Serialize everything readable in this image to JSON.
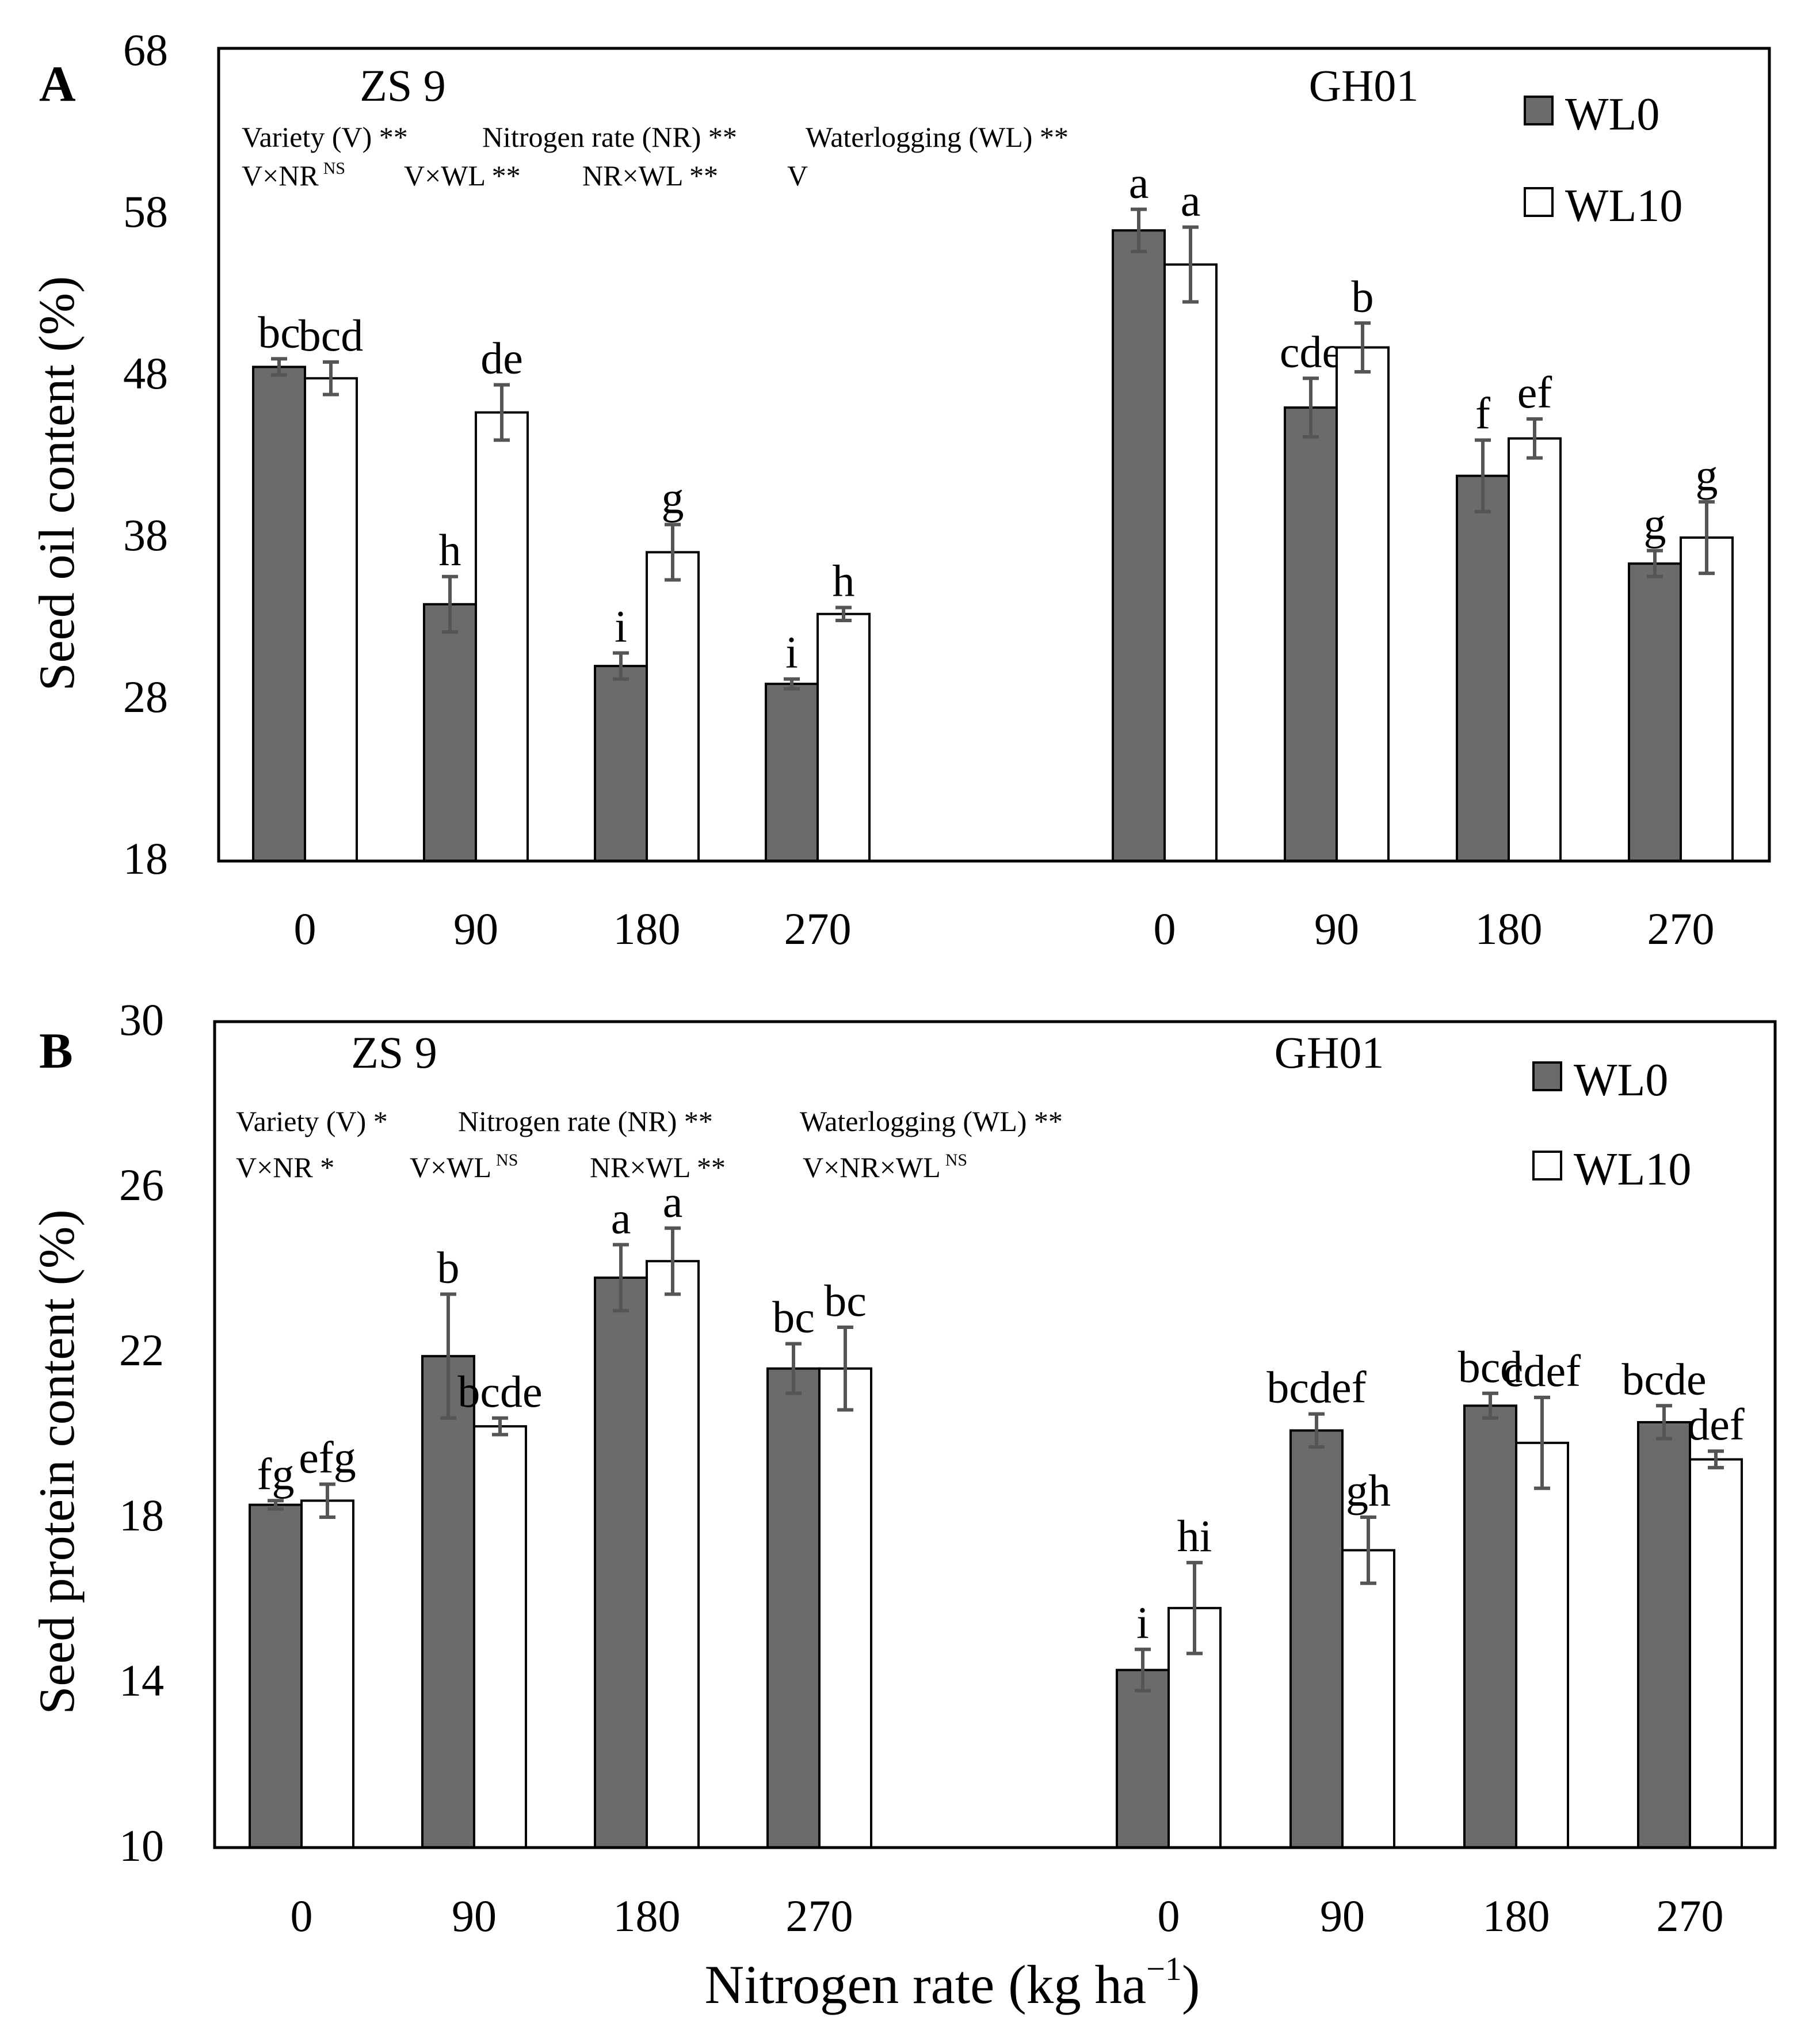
{
  "figure": {
    "xlabel": "Nitrogen rate (kg ha",
    "xlabel_sup": "−1",
    "xlabel_end": ")"
  },
  "chart_data": [
    {
      "type": "bar",
      "panel": "A",
      "ylabel": "Seed oil content (%)",
      "ylim": [
        18,
        68
      ],
      "yticks": [
        18,
        28,
        38,
        48,
        58,
        68
      ],
      "groups": [
        "ZS 9",
        "GH01"
      ],
      "categories": [
        "0",
        "90",
        "180",
        "270",
        "0",
        "90",
        "180",
        "270"
      ],
      "series": [
        {
          "name": "WL0",
          "color": "#6b6b6b",
          "values": [
            48.4,
            33.8,
            30.0,
            28.9,
            56.8,
            45.9,
            41.7,
            36.3
          ],
          "errors": [
            0.5,
            1.7,
            0.8,
            0.3,
            1.3,
            1.8,
            2.2,
            0.8
          ],
          "labels": [
            "bc",
            "h",
            "i",
            "i",
            "a",
            "cde",
            "f",
            "g"
          ]
        },
        {
          "name": "WL10",
          "color": "#ffffff",
          "values": [
            47.7,
            45.6,
            37.0,
            33.2,
            54.7,
            49.6,
            44.0,
            37.9
          ],
          "errors": [
            1.0,
            1.7,
            1.7,
            0.4,
            2.3,
            1.5,
            1.2,
            2.2
          ],
          "labels": [
            "bcd",
            "de",
            "g",
            "h",
            "a",
            "b",
            "ef",
            "g"
          ]
        }
      ],
      "legend": [
        "WL0",
        "WL10"
      ],
      "stats_row1": [
        "Variety (V) **",
        "Nitrogen rate (NR) **",
        "Waterlogging (WL) **"
      ],
      "stats_row2": [
        {
          "text": "V×NR",
          "sup": "NS"
        },
        {
          "text": "V×WL **",
          "sup": ""
        },
        {
          "text": "NR×WL **",
          "sup": ""
        },
        {
          "text": "V",
          "sup": ""
        }
      ]
    },
    {
      "type": "bar",
      "panel": "B",
      "ylabel": "Seed protein content (%)",
      "ylim": [
        10,
        30
      ],
      "yticks": [
        10,
        14,
        18,
        22,
        26,
        30
      ],
      "groups": [
        "ZS 9",
        "GH01"
      ],
      "categories": [
        "0",
        "90",
        "180",
        "270",
        "0",
        "90",
        "180",
        "270"
      ],
      "series": [
        {
          "name": "WL0",
          "color": "#6b6b6b",
          "values": [
            18.3,
            21.9,
            23.8,
            21.6,
            14.3,
            20.1,
            20.7,
            20.3
          ],
          "errors": [
            0.1,
            1.5,
            0.8,
            0.6,
            0.5,
            0.4,
            0.3,
            0.4
          ],
          "labels": [
            "fg",
            "b",
            "a",
            "bc",
            "i",
            "bcdef",
            "bcd",
            "bcde"
          ]
        },
        {
          "name": "WL10",
          "color": "#ffffff",
          "values": [
            18.4,
            20.2,
            24.2,
            21.6,
            15.8,
            17.2,
            19.8,
            19.4
          ],
          "errors": [
            0.4,
            0.2,
            0.8,
            1.0,
            1.1,
            0.8,
            1.1,
            0.2
          ],
          "labels": [
            "efg",
            "bcde",
            "a",
            "bc",
            "hi",
            "gh",
            "cdef",
            "def"
          ]
        }
      ],
      "legend": [
        "WL0",
        "WL10"
      ],
      "stats_row1": [
        "Variety (V) *",
        "Nitrogen rate (NR) **",
        "Waterlogging (WL) **"
      ],
      "stats_row2": [
        {
          "text": "V×NR *",
          "sup": ""
        },
        {
          "text": "V×WL",
          "sup": "NS"
        },
        {
          "text": "NR×WL **",
          "sup": ""
        },
        {
          "text": "V×NR×WL",
          "sup": "NS"
        }
      ]
    }
  ]
}
